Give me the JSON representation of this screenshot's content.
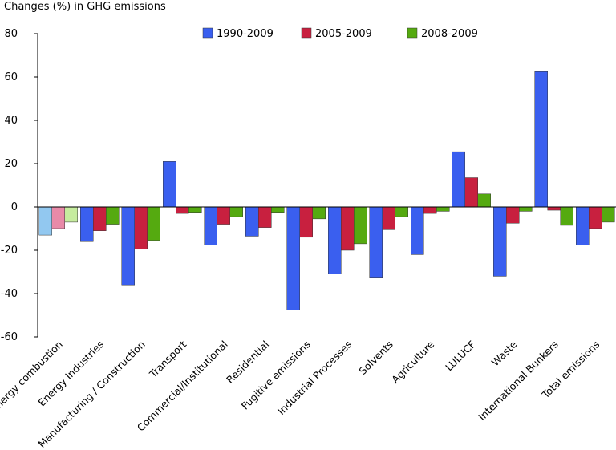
{
  "chart_data": {
    "type": "bar",
    "title": "Changes (%) in GHG emissions",
    "ylim": [
      -60,
      80
    ],
    "yticks": [
      -60,
      -40,
      -20,
      0,
      20,
      40,
      60,
      80
    ],
    "ytick_labels": [
      "-60",
      "-40",
      "-20",
      "0",
      "20",
      "40",
      "60",
      "80"
    ],
    "grid": false,
    "legend_position": "top-center",
    "categories": [
      "Energy combustion",
      "Energy Industries",
      "Manufacturing / Construction",
      "Transport",
      "Commercial/Institutional",
      "Residential",
      "Fugitive emissions",
      "Industrial Processes",
      "Solvents",
      "Agriculture",
      "LULUCF",
      "Waste",
      "International Bunkers",
      "Total emissions"
    ],
    "series": [
      {
        "name": "1990-2009",
        "color": "#3a5fef",
        "light_color": "#92c8f0",
        "values": [
          -13,
          -16,
          -36,
          21,
          -17.5,
          -13.5,
          -47.5,
          -31,
          -32.5,
          -22,
          25.5,
          -32,
          62.5,
          -17.5
        ]
      },
      {
        "name": "2005-2009",
        "color": "#c8203f",
        "light_color": "#e88aa8",
        "values": [
          -10,
          -11,
          -19.5,
          -3,
          -8,
          -9.5,
          -14,
          -20,
          -10.5,
          -3,
          13.5,
          -7.5,
          -1.5,
          -10
        ]
      },
      {
        "name": "2008-2009",
        "color": "#55aa10",
        "light_color": "#c6ec9e",
        "values": [
          -7,
          -8,
          -15.5,
          -2.5,
          -4.5,
          -2.5,
          -5.5,
          -17,
          -4.5,
          -2,
          6,
          -2,
          -8.5,
          -7
        ]
      }
    ],
    "highlighted_light_category_index": 0
  }
}
